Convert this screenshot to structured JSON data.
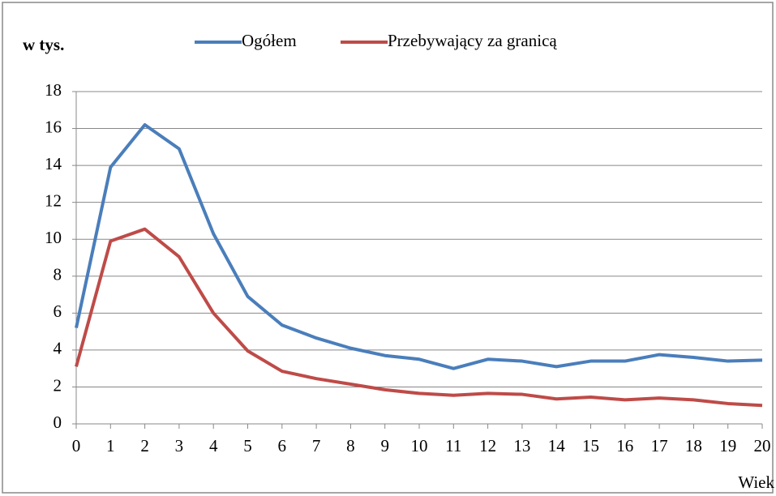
{
  "chart_data": {
    "type": "line",
    "title": "w tys.",
    "x_label": "Wiek",
    "x": [
      0,
      1,
      2,
      3,
      4,
      5,
      6,
      7,
      8,
      9,
      10,
      11,
      12,
      13,
      14,
      15,
      16,
      17,
      18,
      19,
      20
    ],
    "series": [
      {
        "name": "Ogółem",
        "color": "#4a7ebb",
        "values": [
          5.2,
          13.9,
          16.2,
          14.9,
          10.3,
          6.9,
          5.35,
          4.65,
          4.1,
          3.7,
          3.5,
          3.0,
          3.5,
          3.4,
          3.1,
          3.4,
          3.4,
          3.75,
          3.6,
          3.4,
          3.45
        ]
      },
      {
        "name": "Przebywający za granicą",
        "color": "#be4b48",
        "values": [
          3.1,
          9.9,
          10.55,
          9.05,
          6.0,
          3.95,
          2.85,
          2.45,
          2.15,
          1.85,
          1.65,
          1.55,
          1.65,
          1.6,
          1.35,
          1.45,
          1.3,
          1.4,
          1.3,
          1.1,
          1.0
        ]
      }
    ],
    "xlim": [
      0,
      20
    ],
    "xticks": [
      0,
      1,
      2,
      3,
      4,
      5,
      6,
      7,
      8,
      9,
      10,
      11,
      12,
      13,
      14,
      15,
      16,
      17,
      18,
      19,
      20
    ],
    "ylim": [
      0,
      18
    ],
    "yticks": [
      0,
      2,
      4,
      6,
      8,
      10,
      12,
      14,
      16,
      18
    ],
    "grid": true
  }
}
